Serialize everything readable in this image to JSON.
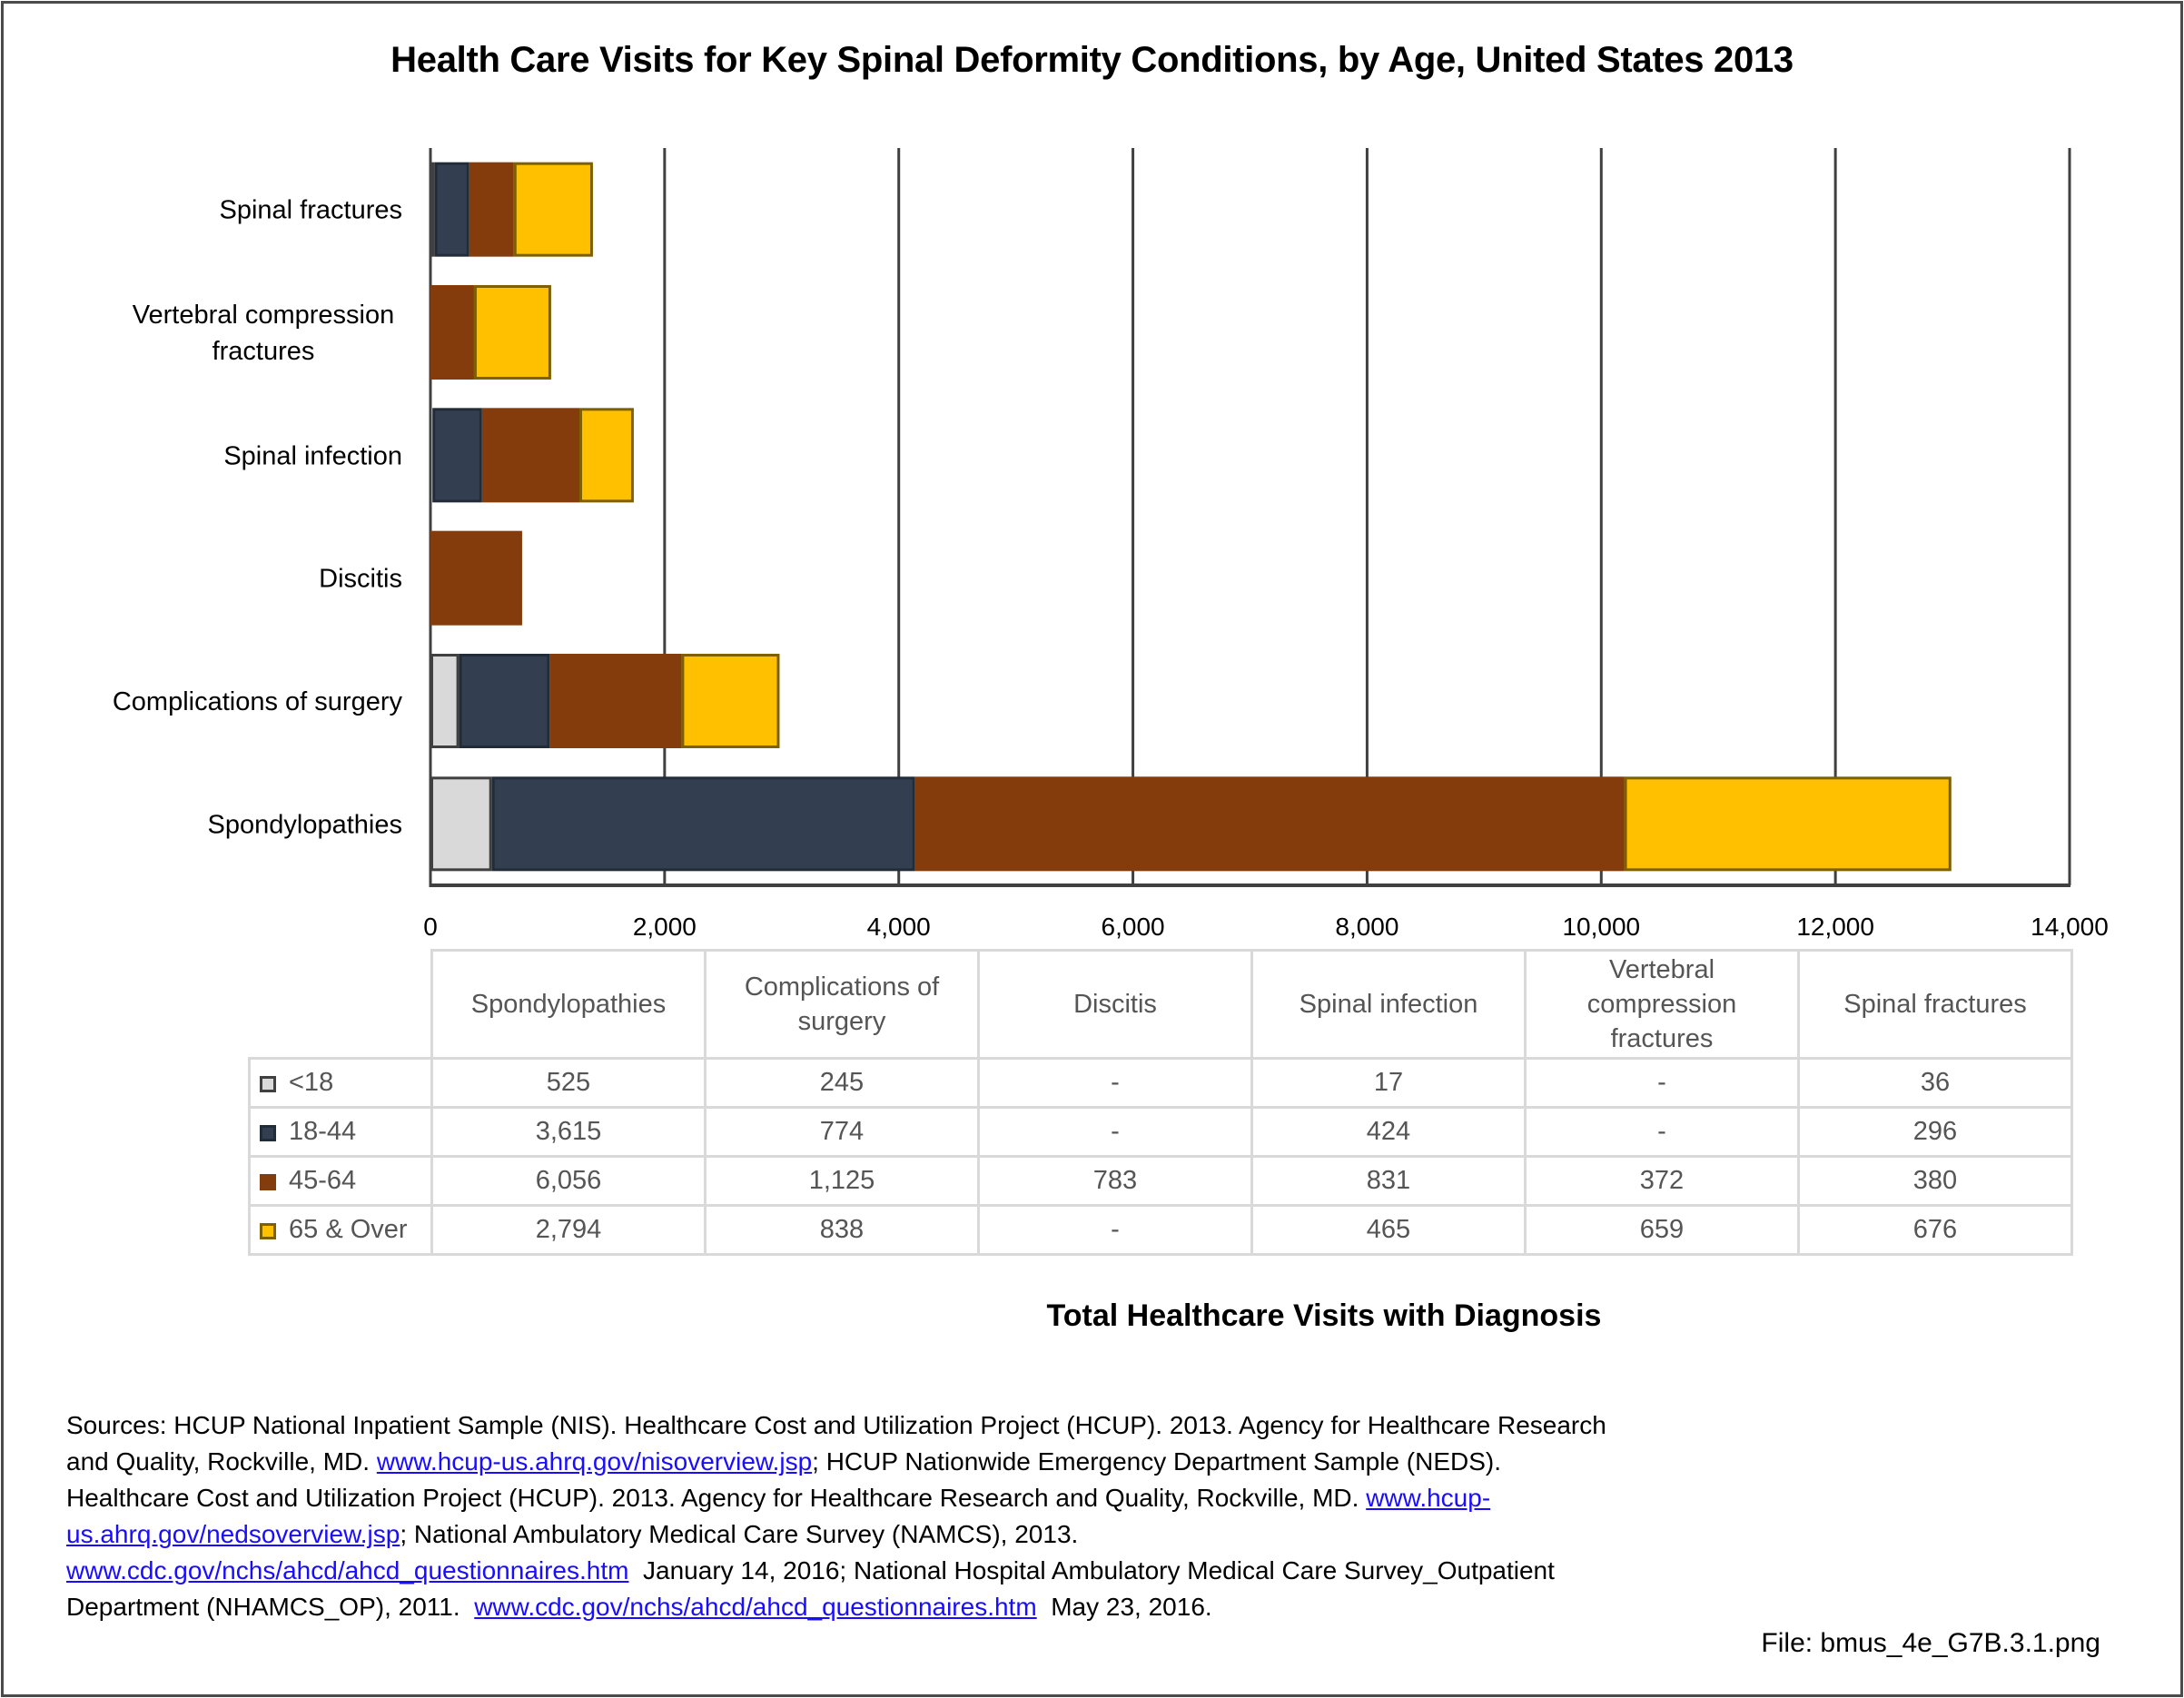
{
  "chart_data": {
    "type": "bar",
    "orientation": "horizontal",
    "stacked": true,
    "title": "Health Care Visits for Key Spinal Deformity Conditions, by Age, United States 2013",
    "xlabel": "Total Healthcare Visits with Diagnosis",
    "ylabel": "",
    "xlim": [
      0,
      14000
    ],
    "xticks": [
      0,
      2000,
      4000,
      6000,
      8000,
      10000,
      12000,
      14000
    ],
    "xtick_labels": [
      "0",
      "2,000",
      "4,000",
      "6,000",
      "8,000",
      "10,000",
      "12,000",
      "14,000"
    ],
    "grid": "vertical",
    "legend": "table-below",
    "categories_top_to_bottom": [
      "Spinal fractures",
      "Vertebral compression fractures",
      "Spinal infection",
      "Discitis",
      "Complications of surgery",
      "Spondylopathies"
    ],
    "categories": [
      "Spondylopathies",
      "Complications of surgery",
      "Discitis",
      "Spinal infection",
      "Vertebral compression fractures",
      "Spinal fractures"
    ],
    "category_display": [
      [
        "Spondylopathies"
      ],
      [
        "Complications of",
        "surgery"
      ],
      [
        "Discitis"
      ],
      [
        "Spinal infection"
      ],
      [
        "Vertebral",
        "compression",
        "fractures"
      ],
      [
        "Spinal fractures"
      ]
    ],
    "axis_labels_display": {
      "Spinal fractures": [
        "Spinal fractures"
      ],
      "Vertebral compression fractures": [
        "Vertebral compression",
        "fractures"
      ],
      "Spinal infection": [
        "Spinal infection"
      ],
      "Discitis": [
        "Discitis"
      ],
      "Complications of surgery": [
        "Complications of surgery"
      ],
      "Spondylopathies": [
        "Spondylopathies"
      ]
    },
    "series": [
      {
        "name": "<18",
        "color": "#D9D9D9",
        "edge": "#404040",
        "values": [
          525,
          245,
          null,
          17,
          null,
          36
        ],
        "display": [
          "525",
          "245",
          "-",
          "17",
          "-",
          "36"
        ]
      },
      {
        "name": "18-44",
        "color": "#333F50",
        "edge": "#222B38",
        "values": [
          3615,
          774,
          null,
          424,
          null,
          296
        ],
        "display": [
          "3,615",
          "774",
          "-",
          "424",
          "-",
          "296"
        ]
      },
      {
        "name": "45-64",
        "color": "#843C0C",
        "edge": "#843C0C",
        "values": [
          6056,
          1125,
          783,
          831,
          372,
          380
        ],
        "display": [
          "6,056",
          "1,125",
          "783",
          "831",
          "372",
          "380"
        ]
      },
      {
        "name": "65 & Over",
        "color": "#FFC000",
        "edge": "#7F6000",
        "values": [
          2794,
          838,
          null,
          465,
          659,
          676
        ],
        "display": [
          "2,794",
          "838",
          "-",
          "465",
          "659",
          "676"
        ]
      }
    ]
  },
  "caption": "Total Healthcare Visits with Diagnosis",
  "sources": {
    "parts": [
      {
        "t": "Sources: HCUP National Inpatient Sample (NIS). Healthcare Cost and Utilization Project (HCUP). 2013. Agency for Healthcare Research and Quality, Rockville, MD. "
      },
      {
        "t": "www.hcup-us.ahrq.gov/nisoverview.jsp",
        "link": true
      },
      {
        "t": "; HCUP Nationwide Emergency Department Sample (NEDS). Healthcare Cost and Utilization Project (HCUP). 2013. Agency for Healthcare Research and Quality, Rockville, MD. "
      },
      {
        "t": "www.hcup-us.ahrq.gov/nedsoverview.jsp",
        "link": true
      },
      {
        "t": "; National Ambulatory Medical Care Survey (NAMCS), 2013. "
      },
      {
        "t": "www.cdc.gov/nchs/ahcd/ahcd_questionnaires.htm",
        "link": true
      },
      {
        "t": "  January 14, 2016; National Hospital Ambulatory Medical Care Survey_Outpatient Department (NHAMCS_OP), 2011.  "
      },
      {
        "t": "www.cdc.gov/nchs/ahcd/ahcd_questionnaires.htm",
        "link": true
      },
      {
        "t": "  May 23, 2016."
      }
    ]
  },
  "file_label": "File: bmus_4e_G7B.3.1.png"
}
